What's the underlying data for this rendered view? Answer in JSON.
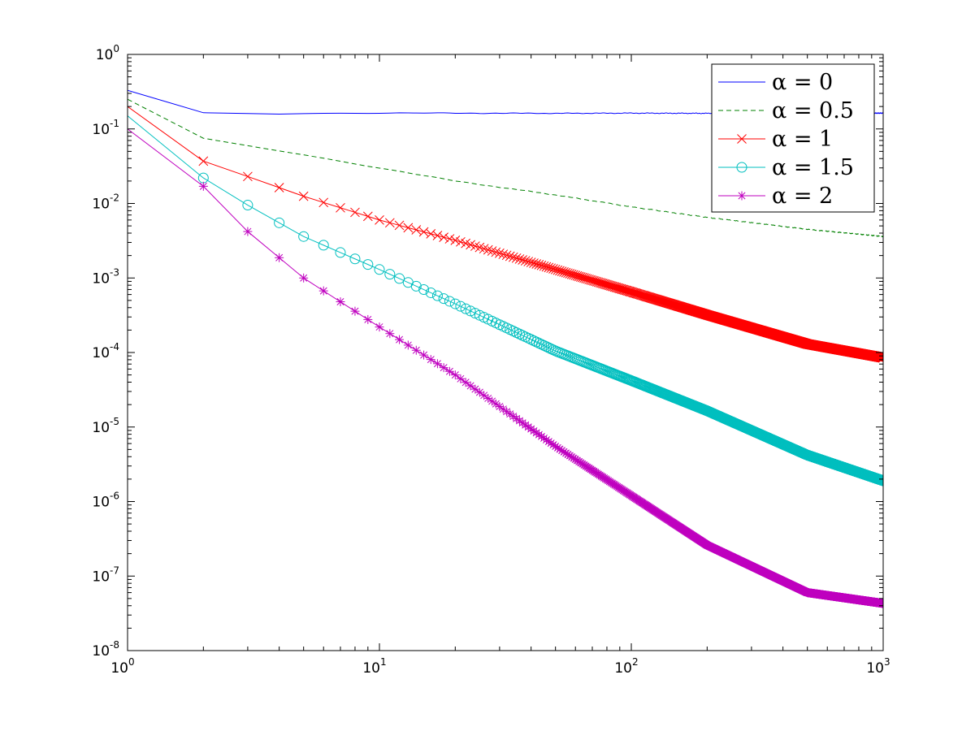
{
  "chart_data": {
    "type": "line",
    "title": "",
    "xlabel": "",
    "ylabel": "",
    "x_scale": "log",
    "y_scale": "log",
    "xlim": [
      1,
      1000
    ],
    "ylim": [
      1e-08,
      1
    ],
    "grid": false,
    "legend_position": "top-right",
    "x_tick_labels": [
      {
        "value": 1,
        "base": "10",
        "exp": "0"
      },
      {
        "value": 10,
        "base": "10",
        "exp": "1"
      },
      {
        "value": 100,
        "base": "10",
        "exp": "2"
      },
      {
        "value": 1000,
        "base": "10",
        "exp": "3"
      }
    ],
    "y_tick_labels": [
      {
        "value": 1,
        "base": "10",
        "exp": "0"
      },
      {
        "value": 0.1,
        "base": "10",
        "exp": "-1"
      },
      {
        "value": 0.01,
        "base": "10",
        "exp": "-2"
      },
      {
        "value": 0.001,
        "base": "10",
        "exp": "-3"
      },
      {
        "value": 0.0001,
        "base": "10",
        "exp": "-4"
      },
      {
        "value": 1e-05,
        "base": "10",
        "exp": "-5"
      },
      {
        "value": 1e-06,
        "base": "10",
        "exp": "-6"
      },
      {
        "value": 1e-07,
        "base": "10",
        "exp": "-7"
      },
      {
        "value": 1e-08,
        "base": "10",
        "exp": "-8"
      }
    ],
    "series": [
      {
        "name": "α = 0",
        "color": "#0000ff",
        "line_style": "solid",
        "marker": "none",
        "x": [
          1,
          2,
          3,
          4,
          5,
          10,
          20,
          50,
          100,
          200,
          500,
          1000
        ],
        "y": [
          0.33,
          0.165,
          0.162,
          0.16,
          0.162,
          0.163,
          0.163,
          0.162,
          0.163,
          0.162,
          0.163,
          0.163
        ]
      },
      {
        "name": "α = 0.5",
        "color": "#008000",
        "line_style": "dashed",
        "marker": "none",
        "x": [
          1,
          2,
          3,
          5,
          10,
          20,
          50,
          100,
          200,
          500,
          1000
        ],
        "y": [
          0.25,
          0.075,
          0.06,
          0.045,
          0.03,
          0.02,
          0.013,
          0.009,
          0.0065,
          0.0045,
          0.0036
        ]
      },
      {
        "name": "α = 1",
        "color": "#ff0000",
        "line_style": "solid",
        "marker": "x",
        "x": [
          1,
          2,
          3,
          5,
          10,
          20,
          50,
          100,
          200,
          500,
          1000
        ],
        "y": [
          0.2,
          0.037,
          0.023,
          0.0125,
          0.006,
          0.0032,
          0.0013,
          0.00065,
          0.00032,
          0.00013,
          8.5e-05
        ]
      },
      {
        "name": "α = 1.5",
        "color": "#00bfbf",
        "line_style": "solid",
        "marker": "circle",
        "x": [
          1,
          2,
          3,
          5,
          10,
          20,
          50,
          100,
          200,
          500,
          1000
        ],
        "y": [
          0.15,
          0.022,
          0.0095,
          0.0036,
          0.0013,
          0.00045,
          0.000105,
          4.2e-05,
          1.65e-05,
          4.2e-06,
          1.9e-06
        ]
      },
      {
        "name": "α = 2",
        "color": "#bf00bf",
        "line_style": "solid",
        "marker": "asterisk",
        "x": [
          1,
          2,
          3,
          5,
          10,
          20,
          50,
          100,
          200,
          500,
          1000
        ],
        "y": [
          0.1,
          0.017,
          0.0042,
          0.001,
          0.00022,
          5e-05,
          5.5e-06,
          1.2e-06,
          2.6e-07,
          6e-08,
          4.3e-08
        ]
      }
    ]
  }
}
